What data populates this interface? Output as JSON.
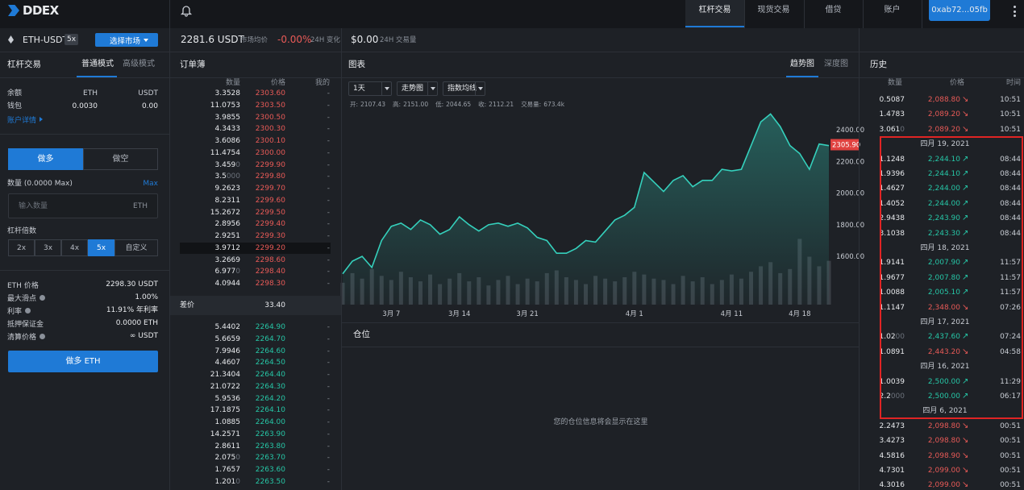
{
  "nav": {
    "logo": "DDEX",
    "tabs": [
      "杠杆交易",
      "现货交易",
      "借贷",
      "账户"
    ],
    "active_tab": 0,
    "wallet": "0xab72...05fb"
  },
  "market": {
    "pair": "ETH-USDT",
    "leverage": "5x",
    "select": "选择市场",
    "price": "2281.6 USDT",
    "price_label": "市场均价",
    "change": "-0.00%",
    "change_label": "24H 变化",
    "volume": "$0.00",
    "volume_label": "24H 交易量"
  },
  "trade": {
    "title": "杠杆交易",
    "modes": [
      "普通模式",
      "高级模式"
    ],
    "active_mode": 0,
    "balance_label": "余额",
    "wallet_label": "钱包",
    "assets": [
      "ETH",
      "USDT"
    ],
    "wallet_values": [
      "0.0030",
      "0.00"
    ],
    "account_link": "账户详情",
    "sides": [
      "做多",
      "做空"
    ],
    "active_side": 0,
    "amount_label": "数量 (0.0000 Max)",
    "max": "Max",
    "input_placeholder": "输入数量",
    "input_unit": "ETH",
    "leverage_label": "杠杆倍数",
    "leverages": [
      "2x",
      "3x",
      "4x",
      "5x",
      "自定义"
    ],
    "active_leverage": 3,
    "details": [
      {
        "label": "ETH 价格",
        "value": "2298.30 USDT"
      },
      {
        "label": "最大滑点",
        "value": "1.00%",
        "info": true
      },
      {
        "label": "利率",
        "value": "11.91% 年利率",
        "info": true
      },
      {
        "label": "抵押保证金",
        "value": "0.0000 ETH"
      },
      {
        "label": "清算价格",
        "value": "∞ USDT",
        "info": true
      }
    ],
    "submit": "做多 ETH"
  },
  "orderbook": {
    "title": "订单薄",
    "headers": [
      "数量",
      "价格",
      "我的"
    ],
    "asks": [
      {
        "amount": "3.3528",
        "price": "2303.60",
        "mine": "-"
      },
      {
        "amount": "11.0753",
        "price": "2303.50",
        "mine": "-"
      },
      {
        "amount": "3.9855",
        "price": "2300.50",
        "mine": "-"
      },
      {
        "amount": "4.3433",
        "price": "2300.30",
        "mine": "-"
      },
      {
        "amount": "3.6086",
        "price": "2300.10",
        "mine": "-"
      },
      {
        "amount": "11.4754",
        "price": "2300.00",
        "mine": "-"
      },
      {
        "amount": "3.4590",
        "price": "2299.90",
        "mine": "-"
      },
      {
        "amount": "3.5000",
        "price": "2299.80",
        "mine": "-"
      },
      {
        "amount": "9.2623",
        "price": "2299.70",
        "mine": "-"
      },
      {
        "amount": "8.2311",
        "price": "2299.60",
        "mine": "-"
      },
      {
        "amount": "15.2672",
        "price": "2299.50",
        "mine": "-"
      },
      {
        "amount": "2.8956",
        "price": "2299.40",
        "mine": "-"
      },
      {
        "amount": "2.9251",
        "price": "2299.30",
        "mine": "-"
      },
      {
        "amount": "3.9712",
        "price": "2299.20",
        "mine": "-",
        "selected": true
      },
      {
        "amount": "3.2669",
        "price": "2298.60",
        "mine": "-"
      },
      {
        "amount": "6.9770",
        "price": "2298.40",
        "mine": "-"
      },
      {
        "amount": "4.0944",
        "price": "2298.30",
        "mine": "-"
      }
    ],
    "spread_label": "差价",
    "spread": "33.40",
    "bids": [
      {
        "amount": "5.4402",
        "price": "2264.90",
        "mine": "-"
      },
      {
        "amount": "5.6659",
        "price": "2264.70",
        "mine": "-"
      },
      {
        "amount": "7.9946",
        "price": "2264.60",
        "mine": "-"
      },
      {
        "amount": "4.4607",
        "price": "2264.50",
        "mine": "-"
      },
      {
        "amount": "21.3404",
        "price": "2264.40",
        "mine": "-"
      },
      {
        "amount": "21.0722",
        "price": "2264.30",
        "mine": "-"
      },
      {
        "amount": "5.9536",
        "price": "2264.20",
        "mine": "-"
      },
      {
        "amount": "17.1875",
        "price": "2264.10",
        "mine": "-"
      },
      {
        "amount": "1.0885",
        "price": "2264.00",
        "mine": "-"
      },
      {
        "amount": "14.2571",
        "price": "2263.90",
        "mine": "-"
      },
      {
        "amount": "2.8611",
        "price": "2263.80",
        "mine": "-"
      },
      {
        "amount": "2.0750",
        "price": "2263.70",
        "mine": "-"
      },
      {
        "amount": "1.7657",
        "price": "2263.60",
        "mine": "-"
      },
      {
        "amount": "1.2010",
        "price": "2263.50",
        "mine": "-"
      }
    ]
  },
  "chart_panel": {
    "title": "图表",
    "tabs": [
      "趋势图",
      "深度图"
    ],
    "active_tab": 0,
    "controls": [
      "1天",
      "走势图",
      "指数均线"
    ],
    "ohlc": [
      {
        "label": "开:",
        "value": "2107.43"
      },
      {
        "label": "高:",
        "value": "2151.00"
      },
      {
        "label": "低:",
        "value": "2044.65"
      },
      {
        "label": "收:",
        "value": "2112.21"
      },
      {
        "label": "交易量:",
        "value": "673.4k"
      }
    ],
    "price_chart": {
      "type": "line",
      "color": "#35d0bc",
      "categories": [
        null,
        null,
        null,
        null,
        null,
        "3月 7",
        null,
        null,
        null,
        null,
        null,
        null,
        "3月 14",
        null,
        null,
        null,
        null,
        null,
        null,
        "3月 21",
        null,
        null,
        null,
        null,
        null,
        null,
        null,
        null,
        null,
        null,
        "4月 1",
        null,
        null,
        null,
        null,
        null,
        null,
        null,
        null,
        null,
        "4月 11",
        null,
        null,
        null,
        null,
        null,
        null,
        "4月 18",
        null,
        null,
        null
      ],
      "values": [
        1490,
        1570,
        1600,
        1530,
        1700,
        1790,
        1810,
        1770,
        1830,
        1800,
        1740,
        1770,
        1850,
        1800,
        1760,
        1800,
        1810,
        1790,
        1810,
        1780,
        1720,
        1700,
        1620,
        1620,
        1650,
        1700,
        1690,
        1760,
        1830,
        1860,
        1910,
        2130,
        2070,
        2010,
        2080,
        2110,
        2040,
        2080,
        2080,
        2150,
        2140,
        2150,
        2300,
        2450,
        2500,
        2420,
        2300,
        2250,
        2150,
        2310,
        2300
      ],
      "volume": [
        32,
        46,
        38,
        52,
        42,
        36,
        48,
        40,
        34,
        44,
        30,
        38,
        46,
        34,
        40,
        28,
        36,
        42,
        30,
        38,
        34,
        46,
        50,
        40,
        36,
        30,
        42,
        38,
        34,
        40,
        48,
        44,
        38,
        36,
        30,
        42,
        34,
        40,
        30,
        36,
        44,
        38,
        48,
        56,
        62,
        46,
        52,
        96,
        70,
        56,
        64
      ],
      "ylim": [
        1295,
        2558
      ],
      "yticks": [
        {
          "value": 2400,
          "label": "2400.00"
        },
        {
          "value": 2200,
          "label": "2200.00"
        },
        {
          "value": 2000,
          "label": "2000.00"
        },
        {
          "value": 1800,
          "label": "1800.00"
        },
        {
          "value": 1600,
          "label": "1600.00"
        }
      ],
      "last": {
        "value": 2305.9,
        "label": "2305.90"
      }
    }
  },
  "positions": {
    "title": "仓位",
    "empty": "您的仓位信息将会显示在这里"
  },
  "history": {
    "title": "历史",
    "headers": [
      "数量",
      "价格",
      "时间"
    ],
    "items": [
      {
        "amount": "0.5087",
        "price": "2,088.80",
        "arrow": "↘",
        "time": "10:51"
      },
      {
        "amount": "1.4783",
        "price": "2,089.20",
        "arrow": "↘",
        "time": "10:51"
      },
      {
        "amount": "3.0610",
        "price": "2,089.20",
        "arrow": "↘",
        "time": "10:51"
      },
      {
        "date": "四月 19, 2021",
        "highlighted": true
      },
      {
        "amount": "1.1248",
        "price": "2,244.10",
        "arrow": "↗",
        "time": "08:44",
        "highlighted": true
      },
      {
        "amount": "1.9396",
        "price": "2,244.10",
        "arrow": "↗",
        "time": "08:44",
        "highlighted": true
      },
      {
        "amount": "1.4627",
        "price": "2,244.00",
        "arrow": "↗",
        "time": "08:44",
        "highlighted": true
      },
      {
        "amount": "1.4052",
        "price": "2,244.00",
        "arrow": "↗",
        "time": "08:44",
        "highlighted": true
      },
      {
        "amount": "2.9438",
        "price": "2,243.90",
        "arrow": "↗",
        "time": "08:44",
        "highlighted": true
      },
      {
        "amount": "3.1038",
        "price": "2,243.30",
        "arrow": "↗",
        "time": "08:44",
        "highlighted": true
      },
      {
        "date": "四月 18, 2021",
        "highlighted": true
      },
      {
        "amount": "1.9141",
        "price": "2,007.90",
        "arrow": "↗",
        "time": "11:57",
        "highlighted": true
      },
      {
        "amount": "1.9677",
        "price": "2,007.80",
        "arrow": "↗",
        "time": "11:57",
        "highlighted": true
      },
      {
        "amount": "1.0088",
        "price": "2,005.10",
        "arrow": "↗",
        "time": "11:57",
        "highlighted": true
      },
      {
        "amount": "1.1147",
        "price": "2,348.00",
        "arrow": "↘",
        "time": "07:26",
        "highlighted": true
      },
      {
        "date": "四月 17, 2021",
        "highlighted": true
      },
      {
        "amount": "1.0200",
        "price": "2,437.60",
        "arrow": "↗",
        "time": "07:24",
        "highlighted": true
      },
      {
        "amount": "1.0891",
        "price": "2,443.20",
        "arrow": "↘",
        "time": "04:58",
        "highlighted": true
      },
      {
        "date": "四月 16, 2021",
        "highlighted": true
      },
      {
        "amount": "1.0039",
        "price": "2,500.00",
        "arrow": "↗",
        "time": "11:29",
        "highlighted": true
      },
      {
        "amount": "2.2000",
        "price": "2,500.00",
        "arrow": "↗",
        "time": "06:17",
        "highlighted": true
      },
      {
        "date": "四月 6, 2021",
        "highlighted": true
      },
      {
        "amount": "2.2473",
        "price": "2,098.80",
        "arrow": "↘",
        "time": "00:51"
      },
      {
        "amount": "3.4273",
        "price": "2,098.80",
        "arrow": "↘",
        "time": "00:51"
      },
      {
        "amount": "4.5816",
        "price": "2,098.90",
        "arrow": "↘",
        "time": "00:51"
      },
      {
        "amount": "4.7301",
        "price": "2,099.00",
        "arrow": "↘",
        "time": "00:51"
      },
      {
        "amount": "4.3016",
        "price": "2,099.00",
        "arrow": "↘",
        "time": "00:51"
      }
    ]
  }
}
